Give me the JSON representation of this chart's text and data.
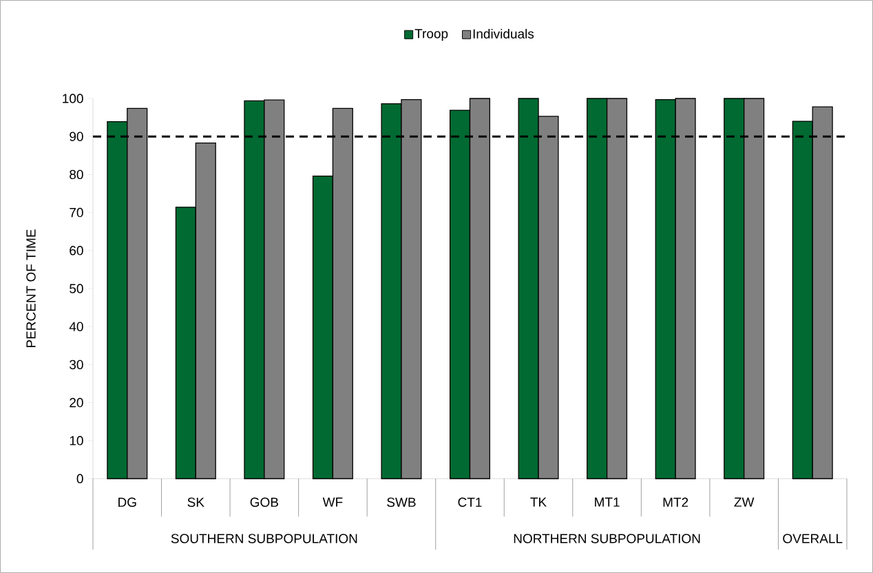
{
  "chart_data": {
    "type": "bar",
    "ylabel": "PERCENT OF TIME",
    "categories": [
      "DG",
      "SK",
      "GOB",
      "WF",
      "SWB",
      "CT1",
      "TK",
      "MT1",
      "MT2",
      "ZW",
      null
    ],
    "annotations": [
      "SOUTHERN SUBPOPULATION",
      "NORTHERN SUBPOPULATION",
      "OVERALL"
    ],
    "series": [
      {
        "name": "Troop",
        "color": "#006a32",
        "values": [
          93.9,
          71.4,
          99.4,
          79.6,
          98.6,
          96.9,
          100,
          100,
          99.7,
          100,
          94.0
        ]
      },
      {
        "name": "Individuals",
        "color": "#808080",
        "values": [
          97.4,
          88.3,
          99.6,
          97.4,
          99.7,
          100,
          95.3,
          100,
          100,
          100,
          97.8
        ]
      }
    ],
    "ylim": [
      0,
      100
    ],
    "yticks": [
      0,
      10,
      20,
      30,
      40,
      50,
      60,
      70,
      80,
      90,
      100
    ],
    "legend": "top",
    "ref_lines": [
      {
        "axis": "y",
        "value": 90,
        "line_style": "dashed",
        "color": "#000000"
      }
    ]
  }
}
